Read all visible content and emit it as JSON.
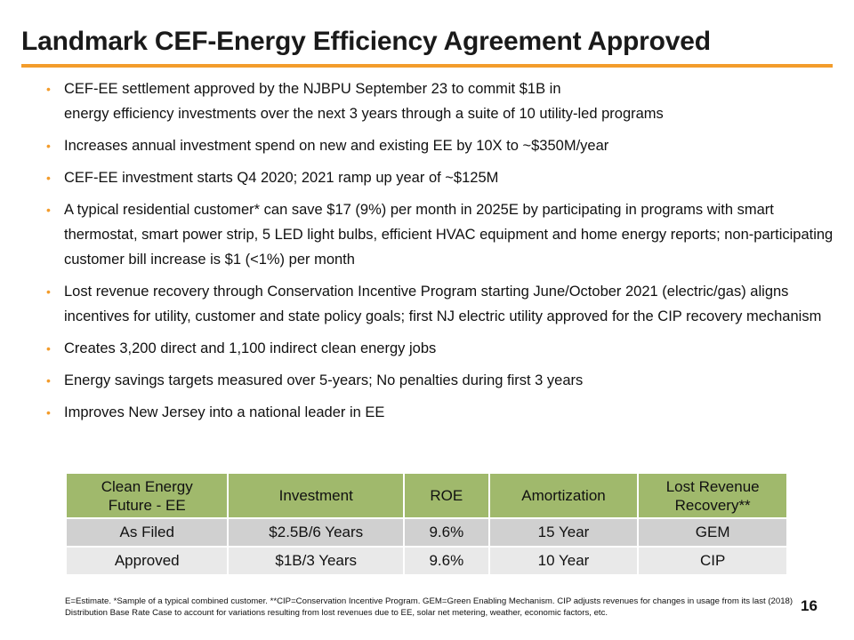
{
  "title": "Landmark CEF-Energy Efficiency Agreement Approved",
  "colors": {
    "accent": "#f39c2b",
    "table_header": "#a0b96c",
    "row_dark": "#d0d0d0",
    "row_light": "#e9e9e9"
  },
  "bullet_glyph": "•",
  "bullets": [
    {
      "lines": [
        "CEF-EE settlement approved by the NJBPU September 23 to commit $1B in",
        "energy efficiency investments over the next 3 years through a suite of 10 utility-led programs"
      ]
    },
    {
      "text": "Increases annual investment spend on new and existing EE by 10X to ~$350M/year"
    },
    {
      "text": "CEF-EE investment starts Q4 2020; 2021 ramp up year of ~$125M"
    },
    {
      "text": "A typical residential customer* can save $17 (9%) per month in 2025E by participating in programs with smart thermostat, smart power strip, 5 LED light bulbs, efficient HVAC equipment and home energy reports; non-participating customer bill increase is $1 (<1%) per month"
    },
    {
      "text": "Lost revenue recovery through Conservation Incentive Program starting June/October 2021 (electric/gas) aligns incentives for utility, customer and state policy goals; first NJ electric utility approved for the CIP recovery mechanism"
    },
    {
      "text": "Creates 3,200 direct and 1,100 indirect clean energy jobs"
    },
    {
      "text": "Energy savings targets measured over 5-years; No penalties during first 3 years"
    },
    {
      "text": "Improves New Jersey into a national leader in EE"
    }
  ],
  "table": {
    "headers": [
      [
        "Clean Energy",
        "Future - EE"
      ],
      [
        "Investment"
      ],
      [
        "ROE"
      ],
      [
        "Amortization"
      ],
      [
        "Lost Revenue",
        "Recovery**"
      ]
    ],
    "rows": [
      [
        "As Filed",
        "$2.5B/6 Years",
        "9.6%",
        "15 Year",
        "GEM"
      ],
      [
        "Approved",
        "$1B/3 Years",
        "9.6%",
        "10 Year",
        "CIP"
      ]
    ]
  },
  "footnote": "E=Estimate. *Sample of a typical combined customer. **CIP=Conservation Incentive Program. GEM=Green Enabling Mechanism. CIP adjusts revenues for changes in usage from its last (2018) Distribution Base Rate Case to account for variations resulting from lost revenues due to EE, solar net metering, weather, economic factors, etc.",
  "page_number": "16"
}
